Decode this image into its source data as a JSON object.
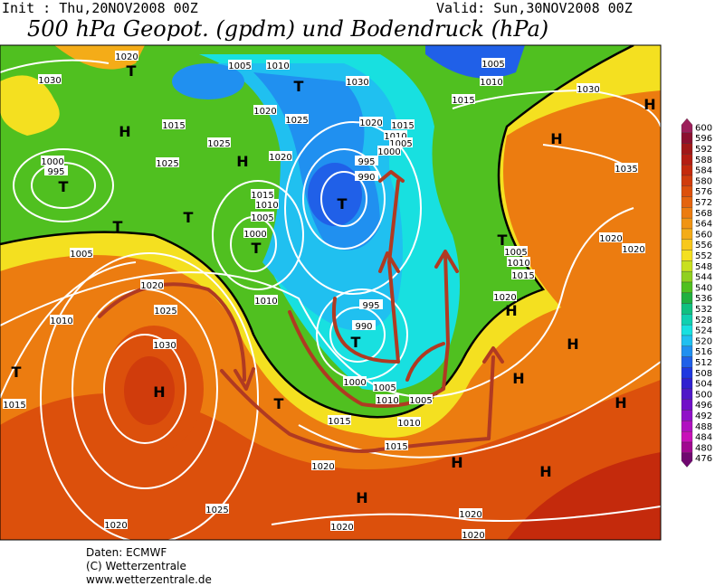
{
  "header": {
    "init": "Init : Thu,20NOV2008 00Z",
    "valid": "Valid: Sun,30NOV2008 00Z",
    "title": "500 hPa Geopot. (gpdm) und Bodendruck (hPa)"
  },
  "map": {
    "labels": [
      "1030",
      "1020",
      "T",
      "1005",
      "1010",
      "T",
      "1030",
      "1005",
      "1010",
      "1015",
      "1030",
      "H",
      "1015",
      "H",
      "1020",
      "1025",
      "1020",
      "1015",
      "1010",
      "1005",
      "1000",
      "H",
      "1025",
      "1025",
      "H",
      "1020",
      "995",
      "990",
      "1035",
      "1000",
      "995",
      "T",
      "T",
      "1015",
      "1010",
      "1005",
      "T",
      "T",
      "1000",
      "T",
      "T",
      "1005",
      "1010",
      "1015",
      "1020",
      "1020",
      "1005",
      "1020",
      "1025",
      "1010",
      "1010",
      "995",
      "990",
      "T",
      "H",
      "1020",
      "1030",
      "H",
      "T",
      "H",
      "1000",
      "1005",
      "1010",
      "1005",
      "H",
      "T",
      "1015",
      "H",
      "1015",
      "1010",
      "1015",
      "H",
      "H",
      "1020",
      "H",
      "1025",
      "1020",
      "1020",
      "1020",
      "1020"
    ]
  },
  "colorbar": {
    "values": [
      600,
      596,
      592,
      588,
      584,
      580,
      576,
      572,
      568,
      564,
      560,
      556,
      552,
      548,
      544,
      540,
      536,
      532,
      528,
      524,
      520,
      516,
      512,
      508,
      504,
      500,
      496,
      492,
      488,
      484,
      480,
      476
    ],
    "colors": [
      "#9c1f5a",
      "#8c1030",
      "#a01818",
      "#b41e12",
      "#c42a0c",
      "#d03c0c",
      "#dc500c",
      "#e4640e",
      "#ec7c10",
      "#f09414",
      "#f4ac18",
      "#f8c81c",
      "#f4e020",
      "#c8e020",
      "#90d020",
      "#50c020",
      "#20b040",
      "#10c080",
      "#10d0b0",
      "#18e0e0",
      "#20c0f0",
      "#2090f0",
      "#2060e8",
      "#2038e0",
      "#3020d0",
      "#5018c8",
      "#7010c8",
      "#9010c8",
      "#b010c0",
      "#c810b8",
      "#a00890",
      "#700870"
    ]
  },
  "footer": {
    "source": "Daten: ECMWF",
    "copyright": "(C) Wetterzentrale",
    "url": "www.wetterzentrale.de"
  }
}
